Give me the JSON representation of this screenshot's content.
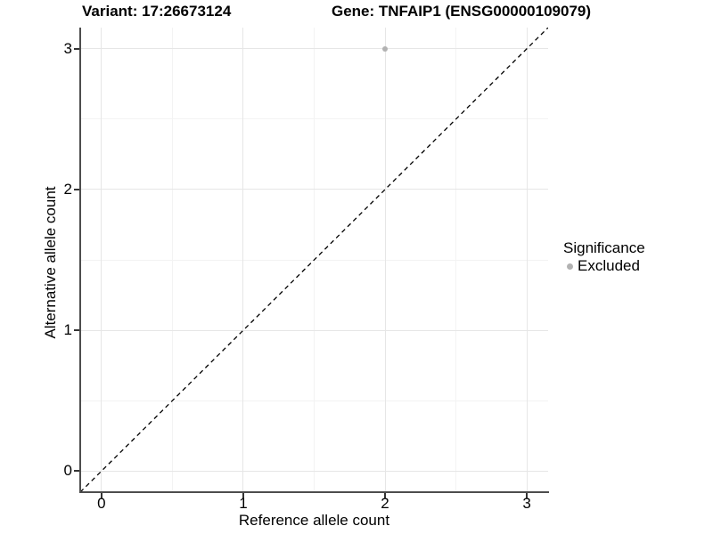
{
  "chart_data": {
    "type": "scatter",
    "titles": {
      "left": "Variant: 17:26673124",
      "right": "Gene: TNFAIP1 (ENSG00000109079)"
    },
    "xlabel": "Reference allele count",
    "ylabel": "Alternative allele count",
    "xlim": [
      -0.15,
      3.15
    ],
    "ylim": [
      -0.15,
      3.15
    ],
    "x_tick_values": [
      0,
      1,
      2,
      3
    ],
    "x_tick_labels": [
      "0",
      "1",
      "2",
      "3"
    ],
    "y_tick_values": [
      0,
      1,
      2,
      3
    ],
    "y_tick_labels": [
      "0",
      "1",
      "2",
      "3"
    ],
    "grid": {
      "major": true,
      "minor": true
    },
    "series": [
      {
        "name": "Excluded",
        "color": "#b2b2b2",
        "points": [
          {
            "x": 2,
            "y": 3
          }
        ]
      }
    ],
    "reference_line": {
      "kind": "identity",
      "equation": "y = x",
      "style": "dashed",
      "dash": "5,4",
      "color": "#000000"
    },
    "legend": {
      "title": "Significance",
      "position": "right",
      "items": [
        {
          "label": "Excluded",
          "color": "#b2b2b2"
        }
      ]
    },
    "colors": {
      "background": "#ffffff",
      "grid_major": "#e6e6e6",
      "grid_minor": "#f3f3f3",
      "axis_line": "#4d4d4d",
      "text": "#000000"
    }
  }
}
